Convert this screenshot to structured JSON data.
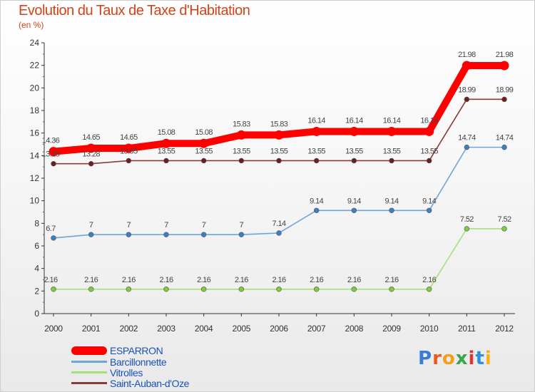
{
  "header": {
    "title": "Evolution du Taux de Taxe d'Habitation",
    "subtitle": "(en %)"
  },
  "brand": {
    "text": "Proxiti",
    "letter_colors": [
      "#3a7bd5",
      "#e85d1f",
      "#f0a01a",
      "#3aa64a",
      "#e3352d",
      "#2f8fdc",
      "#f6b21b"
    ]
  },
  "chart_data": {
    "type": "line",
    "title": "Evolution du Taux de Taxe d'Habitation",
    "subtitle": "(en %)",
    "xlabel": "",
    "ylabel": "",
    "x": [
      "2000",
      "2001",
      "2002",
      "2003",
      "2004",
      "2005",
      "2006",
      "2007",
      "2008",
      "2009",
      "2010",
      "2011",
      "2012"
    ],
    "ylim": [
      0,
      24
    ],
    "yticks": [
      0,
      2,
      4,
      6,
      8,
      10,
      12,
      14,
      16,
      18,
      20,
      22,
      24
    ],
    "grid": false,
    "legend_position": "bottom-left",
    "series": [
      {
        "name": "ESPARRON",
        "color": "#ff0000",
        "emphasis": "thick",
        "values": [
          14.36,
          14.65,
          14.65,
          15.08,
          15.08,
          15.83,
          15.83,
          16.14,
          16.14,
          16.14,
          16.14,
          21.98,
          21.98
        ],
        "labels": [
          "14.36",
          "14.65",
          "14.65",
          "15.08",
          "15.08",
          "15.83",
          "15.83",
          "16.14",
          "16.14",
          "16.14",
          "16.14",
          "21.98",
          "21.98"
        ]
      },
      {
        "name": "Barcillonnette",
        "color": "#6fa6d6",
        "marker_color": "#3d7fc0",
        "values": [
          6.7,
          7,
          7,
          7,
          7,
          7,
          7.14,
          9.14,
          9.14,
          9.14,
          9.14,
          14.74,
          14.74
        ],
        "labels": [
          "6.7",
          "7",
          "7",
          "7",
          "7",
          "7",
          "7.14",
          "9.14",
          "9.14",
          "9.14",
          "9.14",
          "14.74",
          "14.74"
        ]
      },
      {
        "name": "Vitrolles",
        "color": "#a6e07a",
        "marker_color": "#7ccd3e",
        "values": [
          2.16,
          2.16,
          2.16,
          2.16,
          2.16,
          2.16,
          2.16,
          2.16,
          2.16,
          2.16,
          2.16,
          7.52,
          7.52
        ],
        "labels": [
          "2.16",
          "2.16",
          "2.16",
          "2.16",
          "2.16",
          "2.16",
          "2.16",
          "2.16",
          "2.16",
          "2.16",
          "2.16",
          "7.52",
          "7.52"
        ]
      },
      {
        "name": "Saint-Auban-d'Oze",
        "color": "#8b3a3a",
        "marker_color": "#6b1f1f",
        "values": [
          13.28,
          13.28,
          13.55,
          13.55,
          13.55,
          13.55,
          13.55,
          13.55,
          13.55,
          13.55,
          13.55,
          18.99,
          18.99
        ],
        "labels": [
          "13.28",
          "13.28",
          "13.55",
          "13.55",
          "13.55",
          "13.55",
          "13.55",
          "13.55",
          "13.55",
          "13.55",
          "13.55",
          "18.99",
          "18.99"
        ]
      }
    ]
  }
}
